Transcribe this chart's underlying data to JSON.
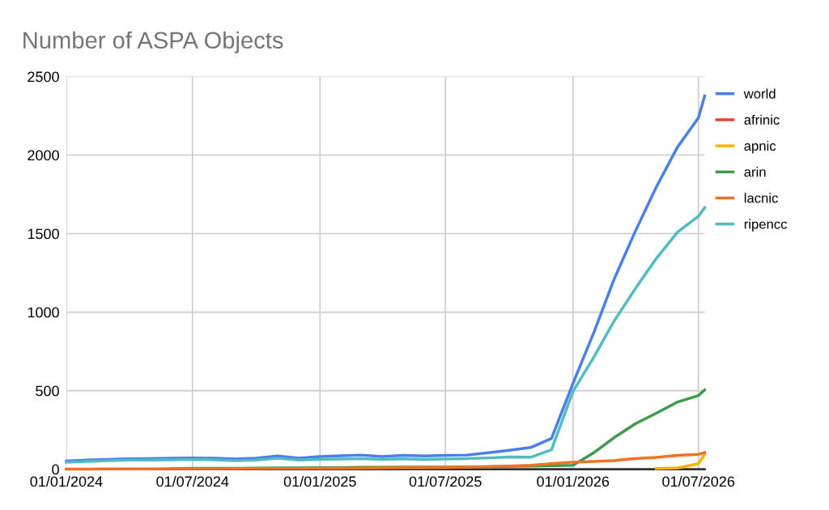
{
  "chart_data": {
    "type": "line",
    "title": "Number of ASPA Objects",
    "x": [
      "2024-01-01",
      "2024-02-01",
      "2024-03-01",
      "2024-04-01",
      "2024-05-01",
      "2024-06-01",
      "2024-07-01",
      "2024-08-01",
      "2024-09-01",
      "2024-10-01",
      "2024-11-01",
      "2024-12-01",
      "2025-01-01",
      "2025-02-01",
      "2025-03-01",
      "2025-04-01",
      "2025-05-01",
      "2025-06-01",
      "2025-07-01",
      "2025-08-01",
      "2025-09-01",
      "2025-10-01",
      "2025-11-01",
      "2025-12-01",
      "2026-01-01",
      "2026-02-01",
      "2026-03-01",
      "2026-04-01",
      "2026-05-01",
      "2026-06-01",
      "2026-07-01",
      "2026-07-10"
    ],
    "series": [
      {
        "name": "world",
        "color": "#4a7ee8",
        "values": [
          52,
          58,
          63,
          66,
          68,
          70,
          72,
          70,
          65,
          70,
          85,
          70,
          80,
          85,
          90,
          80,
          88,
          84,
          88,
          90,
          105,
          120,
          138,
          196,
          546,
          880,
          1206,
          1515,
          1794,
          2052,
          2237,
          2376
        ]
      },
      {
        "name": "afrinic",
        "color": "#db4437",
        "values": [
          null,
          null,
          null,
          null,
          null,
          null,
          null,
          null,
          null,
          null,
          null,
          null,
          null,
          null,
          null,
          null,
          null,
          null,
          null,
          null,
          null,
          null,
          null,
          null,
          null,
          null,
          null,
          null,
          null,
          null,
          null,
          null
        ]
      },
      {
        "name": "apnic",
        "color": "#f4b400",
        "values": [
          null,
          null,
          null,
          null,
          null,
          null,
          null,
          null,
          null,
          null,
          null,
          null,
          null,
          null,
          null,
          null,
          null,
          null,
          null,
          null,
          null,
          null,
          null,
          null,
          null,
          null,
          null,
          null,
          4,
          8,
          35,
          95
        ]
      },
      {
        "name": "arin",
        "color": "#3c9a4a",
        "values": [
          null,
          null,
          null,
          null,
          null,
          5,
          6,
          6,
          6,
          7,
          8,
          8,
          10,
          10,
          12,
          12,
          13,
          13,
          14,
          15,
          16,
          18,
          20,
          22,
          25,
          108,
          200,
          289,
          356,
          428,
          469,
          505
        ]
      },
      {
        "name": "lacnic",
        "color": "#ef7121",
        "values": [
          1,
          1,
          2,
          2,
          2,
          3,
          3,
          3,
          4,
          4,
          5,
          5,
          6,
          6,
          7,
          8,
          9,
          10,
          11,
          13,
          16,
          20,
          25,
          35,
          45,
          50,
          55,
          68,
          75,
          88,
          95,
          105
        ]
      },
      {
        "name": "ripencc",
        "color": "#50bcc2",
        "values": [
          45,
          50,
          55,
          58,
          58,
          60,
          62,
          60,
          55,
          58,
          70,
          58,
          62,
          65,
          68,
          62,
          66,
          62,
          65,
          68,
          72,
          78,
          76,
          124,
          495,
          720,
          940,
          1150,
          1340,
          1510,
          1610,
          1665
        ]
      }
    ],
    "xlim": [
      "2024-01-01",
      "2026-07-10"
    ],
    "xticks": [
      {
        "value": "2024-01-01",
        "label": "01/01/2024"
      },
      {
        "value": "2024-07-01",
        "label": "01/07/2024"
      },
      {
        "value": "2025-01-01",
        "label": "01/01/2025"
      },
      {
        "value": "2025-07-01",
        "label": "01/07/2025"
      },
      {
        "value": "2026-01-01",
        "label": "01/01/2026"
      },
      {
        "value": "2026-07-01",
        "label": "01/07/2026"
      }
    ],
    "ylim": [
      0,
      2500
    ],
    "yticks": [
      0,
      500,
      1000,
      1500,
      2000,
      2500
    ],
    "grid": true,
    "legend": "right",
    "line_style": "solid"
  }
}
